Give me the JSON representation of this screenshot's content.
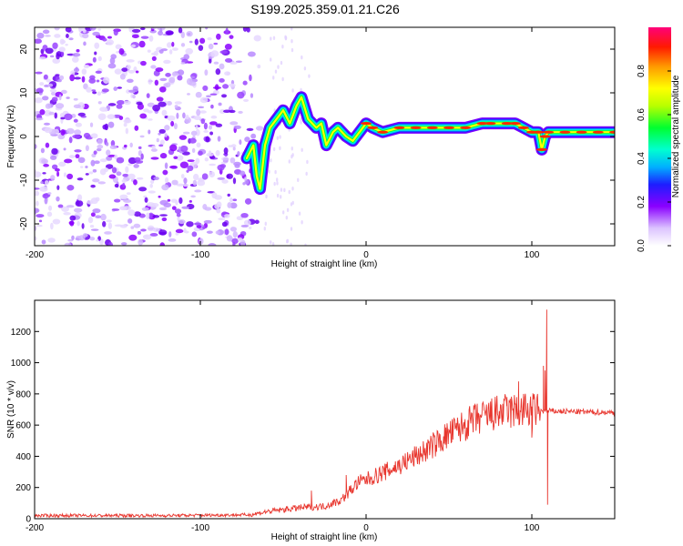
{
  "title": "S199.2025.359.01.21.C26",
  "chart_data": [
    {
      "type": "heatmap",
      "name": "spectrogram",
      "xlabel": "Height of straight line (km)",
      "ylabel": "Frequency (Hz)",
      "xlim": [
        -200,
        150
      ],
      "ylim": [
        -25,
        25
      ],
      "xticks": [
        "-200",
        "-100",
        "0",
        "100"
      ],
      "xtick_values": [
        -200,
        -100,
        0,
        100
      ],
      "yticks": [
        "20",
        "10",
        "0",
        "-10",
        "-20"
      ],
      "ytick_values": [
        20,
        10,
        0,
        -10,
        -20
      ],
      "noise_region_km": [
        -200,
        -70
      ],
      "ridge": [
        [
          -72,
          -5
        ],
        [
          -68,
          -2
        ],
        [
          -66,
          -9
        ],
        [
          -64,
          -12
        ],
        [
          -61,
          -2
        ],
        [
          -58,
          2
        ],
        [
          -54,
          4
        ],
        [
          -50,
          6
        ],
        [
          -46,
          3
        ],
        [
          -42,
          7
        ],
        [
          -39,
          9
        ],
        [
          -35,
          4
        ],
        [
          -30,
          2
        ],
        [
          -27,
          3
        ],
        [
          -24,
          -2
        ],
        [
          -20,
          1
        ],
        [
          -17,
          2
        ],
        [
          -12,
          0
        ],
        [
          -8,
          -1
        ],
        [
          -4,
          1
        ],
        [
          0,
          3
        ],
        [
          4,
          2
        ],
        [
          10,
          1
        ],
        [
          20,
          2
        ],
        [
          30,
          2
        ],
        [
          40,
          2
        ],
        [
          50,
          2
        ],
        [
          60,
          2
        ],
        [
          70,
          3
        ],
        [
          75,
          3
        ],
        [
          85,
          3
        ],
        [
          90,
          3
        ],
        [
          95,
          2
        ],
        [
          100,
          1
        ],
        [
          104,
          1
        ],
        [
          106,
          -3
        ],
        [
          108,
          0
        ],
        [
          110,
          1
        ],
        [
          120,
          1
        ],
        [
          130,
          1
        ],
        [
          140,
          1
        ],
        [
          150,
          1
        ]
      ]
    },
    {
      "type": "colorbar",
      "label": "Normalized spectral amplitude",
      "range": [
        0,
        1
      ],
      "ticks": [
        "0.0",
        "0.2",
        "0.4",
        "0.6",
        "0.8"
      ],
      "tick_values": [
        0,
        0.2,
        0.4,
        0.6,
        0.8
      ]
    },
    {
      "type": "line",
      "name": "snr",
      "xlabel": "Height of straight line (km)",
      "ylabel": "SNR (10 * v/v)",
      "xlim": [
        -200,
        150
      ],
      "ylim": [
        0,
        1400
      ],
      "xticks": [
        "-200",
        "-100",
        "0",
        "100"
      ],
      "xtick_values": [
        -200,
        -100,
        0,
        100
      ],
      "yticks": [
        "0",
        "200",
        "400",
        "600",
        "800",
        "1000",
        "1200"
      ],
      "ytick_values": [
        0,
        200,
        400,
        600,
        800,
        1000,
        1200
      ],
      "color": "#e8362e",
      "trend": [
        [
          -200,
          20
        ],
        [
          -120,
          20
        ],
        [
          -70,
          25
        ],
        [
          -60,
          45
        ],
        [
          -40,
          70
        ],
        [
          -25,
          80
        ],
        [
          -15,
          120
        ],
        [
          -5,
          230
        ],
        [
          5,
          270
        ],
        [
          20,
          340
        ],
        [
          35,
          430
        ],
        [
          50,
          540
        ],
        [
          65,
          630
        ],
        [
          80,
          680
        ],
        [
          90,
          690
        ],
        [
          100,
          690
        ],
        [
          110,
          690
        ],
        [
          130,
          685
        ],
        [
          150,
          680
        ]
      ],
      "spikes": [
        [
          -33,
          180
        ],
        [
          -12,
          280
        ],
        [
          85,
          780
        ],
        [
          92,
          880
        ],
        [
          95,
          800
        ],
        [
          100,
          520
        ],
        [
          107,
          980
        ],
        [
          108,
          950
        ],
        [
          109,
          1340
        ],
        [
          109.5,
          90
        ]
      ]
    }
  ]
}
